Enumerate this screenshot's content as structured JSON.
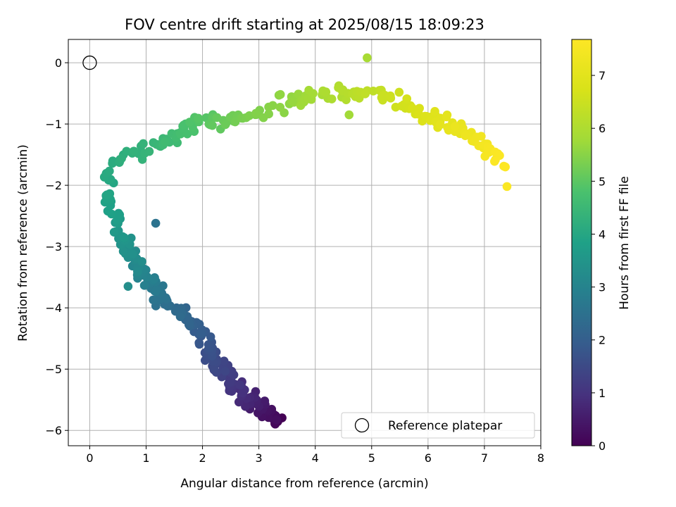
{
  "chart_data": {
    "type": "scatter",
    "title": "FOV centre drift starting at 2025/08/15 18:09:23",
    "xlabel": "Angular distance from reference (arcmin)",
    "ylabel": "Rotation from reference (arcmin)",
    "xlim": [
      -0.38,
      8.0
    ],
    "ylim": [
      -6.25,
      0.38
    ],
    "xticks": [
      0,
      1,
      2,
      3,
      4,
      5,
      6,
      7,
      8
    ],
    "yticks": [
      0,
      -1,
      -2,
      -3,
      -4,
      -5,
      -6
    ],
    "grid": true,
    "colormap": "viridis",
    "colorbar": {
      "label": "Hours from first FF file",
      "range": [
        0,
        7.68
      ],
      "ticks": [
        0,
        1,
        2,
        3,
        4,
        5,
        6,
        7
      ]
    },
    "reference_point": {
      "x": 0,
      "y": 0,
      "marker": "open circle",
      "label": "Reference platepar"
    },
    "legend": {
      "position": "lower-right",
      "entries": [
        "Reference platepar"
      ]
    },
    "path_keypoints": [
      {
        "t": 0.0,
        "x": 3.35,
        "y": -5.85
      },
      {
        "t": 0.5,
        "x": 3.0,
        "y": -5.6
      },
      {
        "t": 1.0,
        "x": 2.6,
        "y": -5.3
      },
      {
        "t": 1.5,
        "x": 2.25,
        "y": -4.9
      },
      {
        "t": 2.0,
        "x": 1.9,
        "y": -4.3
      },
      {
        "t": 2.5,
        "x": 1.3,
        "y": -3.85
      },
      {
        "t": 3.0,
        "x": 0.95,
        "y": -3.45
      },
      {
        "t": 3.5,
        "x": 0.6,
        "y": -2.9
      },
      {
        "t": 3.9,
        "x": 0.35,
        "y": -2.25
      },
      {
        "t": 4.1,
        "x": 0.35,
        "y": -1.7
      },
      {
        "t": 4.5,
        "x": 1.3,
        "y": -1.3
      },
      {
        "t": 4.9,
        "x": 1.9,
        "y": -0.95
      },
      {
        "t": 5.3,
        "x": 2.7,
        "y": -0.95
      },
      {
        "t": 5.6,
        "x": 3.5,
        "y": -0.6
      },
      {
        "t": 6.0,
        "x": 4.3,
        "y": -0.5
      },
      {
        "t": 6.4,
        "x": 5.2,
        "y": -0.5
      },
      {
        "t": 6.8,
        "x": 5.9,
        "y": -0.85
      },
      {
        "t": 7.2,
        "x": 6.6,
        "y": -1.1
      },
      {
        "t": 7.68,
        "x": 7.4,
        "y": -1.65
      }
    ],
    "n_points": 420,
    "outliers": [
      {
        "t": 2.55,
        "x": 1.17,
        "y": -2.62
      },
      {
        "t": 3.3,
        "x": 0.68,
        "y": -3.65
      },
      {
        "t": 5.9,
        "x": 4.92,
        "y": 0.08
      },
      {
        "t": 5.8,
        "x": 4.6,
        "y": -0.85
      },
      {
        "t": 7.6,
        "x": 7.4,
        "y": -2.02
      }
    ]
  }
}
